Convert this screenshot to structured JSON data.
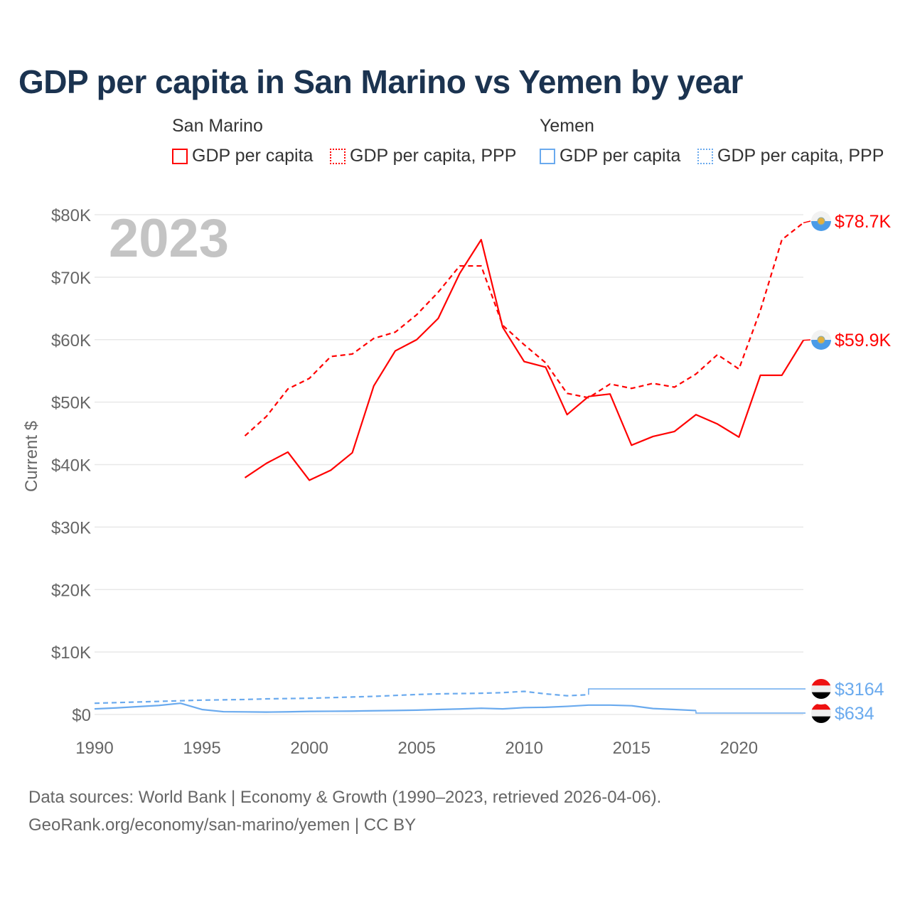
{
  "chart_data": {
    "type": "line",
    "title": "GDP per capita in San Marino vs Yemen by year",
    "ylabel": "Current $",
    "xlabel": "",
    "year_highlight": "2023",
    "xlim": [
      1990,
      2023
    ],
    "ylim": [
      0,
      80000
    ],
    "x_ticks": [
      "1990",
      "1995",
      "2000",
      "2005",
      "2010",
      "2015",
      "2020"
    ],
    "y_ticks": [
      "$0",
      "$10K",
      "$20K",
      "$30K",
      "$40K",
      "$50K",
      "$60K",
      "$70K",
      "$80K"
    ],
    "grid": true,
    "legend_placement": "top",
    "legend_groups": [
      "San Marino",
      "Yemen"
    ],
    "series": [
      {
        "country": "San Marino",
        "name": "GDP per capita",
        "color": "#ff0000",
        "style": "solid",
        "end_label": "$59.9K",
        "x": [
          1997,
          1998,
          1999,
          2000,
          2001,
          2002,
          2003,
          2004,
          2005,
          2006,
          2007,
          2008,
          2009,
          2010,
          2011,
          2012,
          2013,
          2014,
          2015,
          2016,
          2017,
          2018,
          2019,
          2020,
          2021,
          2022,
          2023
        ],
        "values": [
          37900,
          40200,
          42000,
          37500,
          39100,
          41900,
          52600,
          58200,
          60000,
          63400,
          70600,
          76000,
          62000,
          56500,
          55600,
          48000,
          50900,
          51300,
          43100,
          44500,
          45300,
          48000,
          46500,
          44400,
          54300,
          54300,
          59900
        ]
      },
      {
        "country": "San Marino",
        "name": "GDP per capita, PPP",
        "color": "#ff0000",
        "style": "dashed",
        "end_label": "$78.7K",
        "x": [
          1997,
          1998,
          1999,
          2000,
          2001,
          2002,
          2003,
          2004,
          2005,
          2006,
          2007,
          2008,
          2009,
          2010,
          2011,
          2012,
          2013,
          2014,
          2015,
          2016,
          2017,
          2018,
          2019,
          2020,
          2021,
          2022,
          2023
        ],
        "values": [
          44600,
          47700,
          52100,
          53800,
          57300,
          57700,
          60200,
          61200,
          64000,
          67600,
          71800,
          71800,
          62300,
          59200,
          56300,
          51400,
          50700,
          52900,
          52200,
          53000,
          52400,
          54500,
          57600,
          55300,
          64700,
          76000,
          78700
        ]
      },
      {
        "country": "Yemen",
        "name": "GDP per capita",
        "color": "#6aaaee",
        "style": "solid",
        "end_label": "$634",
        "x": [
          1990,
          1991,
          1992,
          1993,
          1994,
          1995,
          1996,
          1997,
          1998,
          1999,
          2000,
          2001,
          2002,
          2003,
          2004,
          2005,
          2006,
          2007,
          2008,
          2009,
          2010,
          2011,
          2012,
          2013,
          2014,
          2015,
          2016,
          2017,
          2018
        ],
        "values": [
          900,
          1050,
          1250,
          1450,
          1800,
          800,
          450,
          420,
          380,
          430,
          500,
          520,
          540,
          600,
          640,
          700,
          800,
          880,
          1000,
          900,
          1100,
          1150,
          1300,
          1500,
          1500,
          1400,
          950,
          800,
          634
        ]
      },
      {
        "country": "Yemen",
        "name": "GDP per capita, PPP",
        "color": "#6aaaee",
        "style": "dashed",
        "end_label": "$3164",
        "x": [
          1990,
          1991,
          1992,
          1993,
          1994,
          1995,
          1996,
          1997,
          1998,
          1999,
          2000,
          2001,
          2002,
          2003,
          2004,
          2005,
          2006,
          2007,
          2008,
          2009,
          2010,
          2011,
          2012,
          2013
        ],
        "values": [
          1800,
          1900,
          2000,
          2100,
          2200,
          2300,
          2350,
          2400,
          2500,
          2550,
          2600,
          2700,
          2800,
          2900,
          3050,
          3200,
          3300,
          3350,
          3400,
          3500,
          3700,
          3300,
          3000,
          3164
        ]
      }
    ]
  },
  "footer": {
    "line1": "Data sources: World Bank | Economy & Growth (1990–2023, retrieved 2026-04-06).",
    "line2": "GeoRank.org/economy/san-marino/yemen | CC BY"
  }
}
